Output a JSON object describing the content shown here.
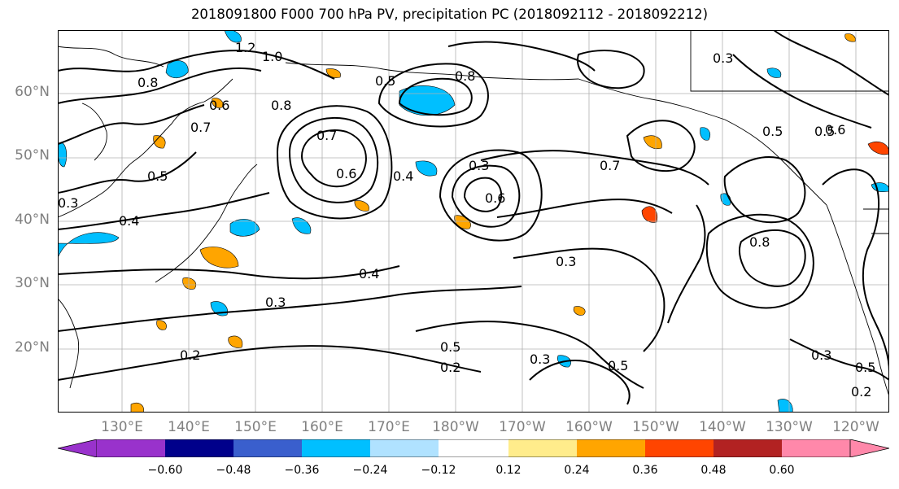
{
  "title": "2018091800 F000 700 hPa PV, precipitation PC (2018092112 - 2018092212)",
  "map": {
    "projection": "PlateCarree",
    "extent_lon": [
      120,
      245
    ],
    "extent_lat": [
      10,
      70
    ],
    "lat_labels": [
      "60°N",
      "50°N",
      "40°N",
      "30°N",
      "20°N"
    ],
    "lon_labels": [
      "130°E",
      "140°E",
      "150°E",
      "160°E",
      "170°E",
      "180°W",
      "170°W",
      "160°W",
      "150°W",
      "140°W",
      "130°W",
      "120°W"
    ],
    "contour_labels": [
      "1.2",
      "1.0",
      "0.8",
      "0.6",
      "0.7",
      "0.5",
      "0.3",
      "0.4",
      "0.2",
      "0.8",
      "0.7",
      "0.6",
      "0.3",
      "0.5",
      "0.4",
      "0.3",
      "0.5",
      "0.2",
      "0.3",
      "0.5",
      "0.8",
      "0.6",
      "0.5",
      "0.3",
      "0.5",
      "0.2",
      "0.3",
      "0.7",
      "0.4",
      "0.8",
      "0.3",
      "0.5",
      "0.6"
    ]
  },
  "colorbar": {
    "tick_labels": [
      "−0.60",
      "−0.48",
      "−0.36",
      "−0.24",
      "−0.12",
      "0.12",
      "0.24",
      "0.36",
      "0.48",
      "0.60"
    ],
    "colors": [
      "#9932cc",
      "#00008b",
      "#3a5fcd",
      "#00bfff",
      "#b0e2ff",
      "#ffffff",
      "#ffec8b",
      "#ffa500",
      "#ff4500",
      "#b22222",
      "#ff88aa"
    ]
  },
  "colors": {
    "contour": "#000000",
    "coast": "#000000",
    "grid": "#b0b0b0",
    "neg_shade": "#00bfff",
    "pos_shade": "#ffa500",
    "pos_strong": "#ff4500"
  }
}
